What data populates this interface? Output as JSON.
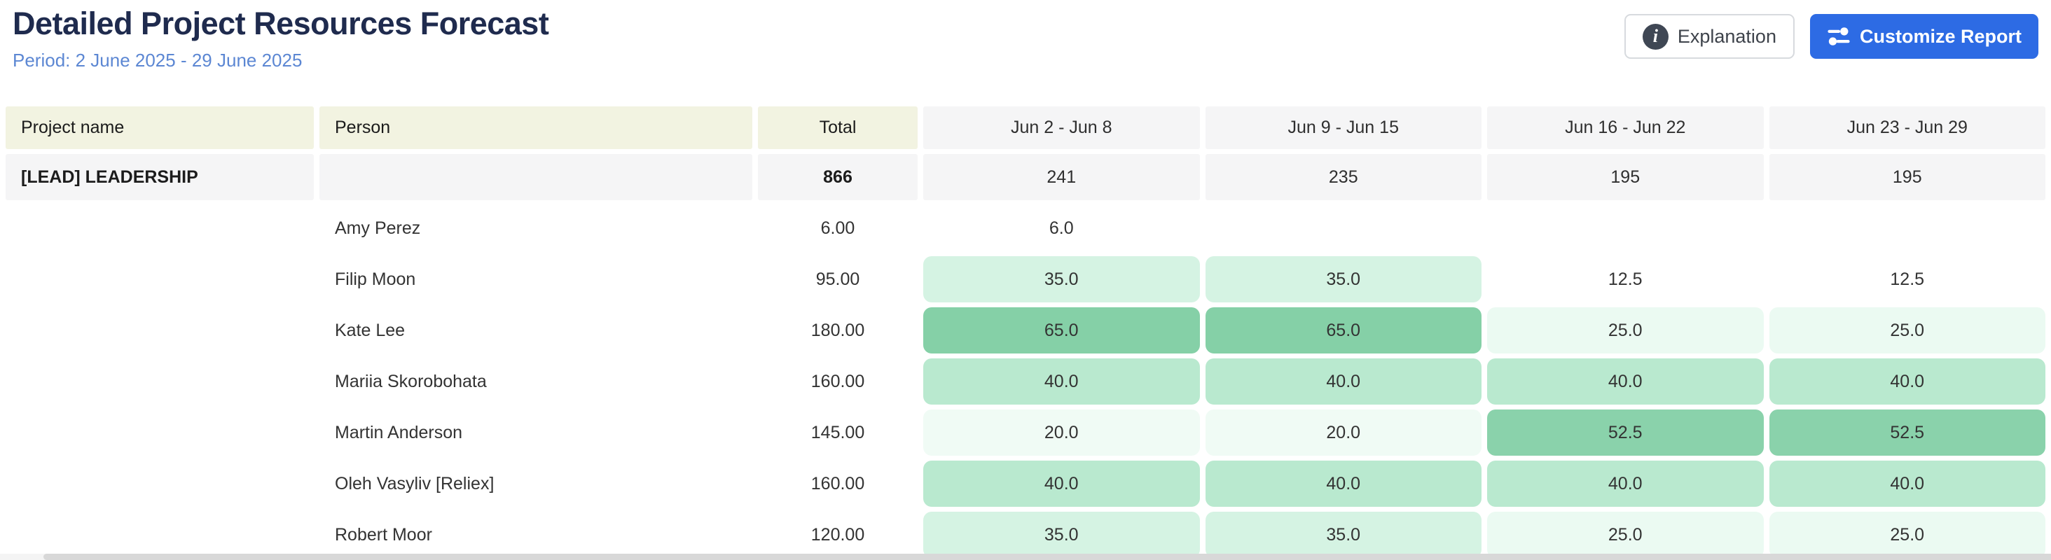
{
  "page": {
    "title": "Detailed Project Resources Forecast",
    "period": "Period: 2 June 2025 - 29 June 2025"
  },
  "toolbar": {
    "explanation_label": "Explanation",
    "customize_label": "Customize Report"
  },
  "colors": {
    "accent_blue": "#2d6be4",
    "title_navy": "#1f2b4e",
    "period_blue": "#5c87d3",
    "header_olive_bg": "#f2f3e1",
    "header_gray_bg": "#f5f5f6",
    "heat_scale": {
      "65.0": "#85d0a7",
      "52.5": "#8ad2ab",
      "40.0": "#b9e9cf",
      "35.0": "#d5f3e3",
      "25.0": "#ebfaf2",
      "20.0": "#f0fbf5"
    }
  },
  "table": {
    "columns": [
      "Project name",
      "Person",
      "Total",
      "Jun 2 - Jun 8",
      "Jun 9 - Jun 15",
      "Jun 16 - Jun 22",
      "Jun 23 - Jun 29"
    ],
    "summary": {
      "project": "[LEAD] LEADERSHIP",
      "person": "",
      "total": "866",
      "weeks": [
        "241",
        "235",
        "195",
        "195"
      ]
    },
    "rows": [
      {
        "person": "Amy Perez",
        "total": "6.00",
        "weeks": [
          {
            "v": "6.0",
            "bg": ""
          },
          {
            "v": "",
            "bg": ""
          },
          {
            "v": "",
            "bg": ""
          },
          {
            "v": "",
            "bg": ""
          }
        ]
      },
      {
        "person": "Filip Moon",
        "total": "95.00",
        "weeks": [
          {
            "v": "35.0",
            "bg": "#d5f3e3"
          },
          {
            "v": "35.0",
            "bg": "#d5f3e3"
          },
          {
            "v": "12.5",
            "bg": ""
          },
          {
            "v": "12.5",
            "bg": ""
          }
        ]
      },
      {
        "person": "Kate Lee",
        "total": "180.00",
        "weeks": [
          {
            "v": "65.0",
            "bg": "#85d0a7"
          },
          {
            "v": "65.0",
            "bg": "#85d0a7"
          },
          {
            "v": "25.0",
            "bg": "#ebfaf2"
          },
          {
            "v": "25.0",
            "bg": "#ebfaf2"
          }
        ]
      },
      {
        "person": "Mariia Skorobohata",
        "total": "160.00",
        "weeks": [
          {
            "v": "40.0",
            "bg": "#b9e9cf"
          },
          {
            "v": "40.0",
            "bg": "#b9e9cf"
          },
          {
            "v": "40.0",
            "bg": "#b9e9cf"
          },
          {
            "v": "40.0",
            "bg": "#b9e9cf"
          }
        ]
      },
      {
        "person": "Martin Anderson",
        "total": "145.00",
        "weeks": [
          {
            "v": "20.0",
            "bg": "#f0fbf5"
          },
          {
            "v": "20.0",
            "bg": "#f0fbf5"
          },
          {
            "v": "52.5",
            "bg": "#8ad2ab"
          },
          {
            "v": "52.5",
            "bg": "#8ad2ab"
          }
        ]
      },
      {
        "person": "Oleh Vasyliv [Reliex]",
        "total": "160.00",
        "weeks": [
          {
            "v": "40.0",
            "bg": "#b9e9cf"
          },
          {
            "v": "40.0",
            "bg": "#b9e9cf"
          },
          {
            "v": "40.0",
            "bg": "#b9e9cf"
          },
          {
            "v": "40.0",
            "bg": "#b9e9cf"
          }
        ]
      },
      {
        "person": "Robert Moor",
        "total": "120.00",
        "weeks": [
          {
            "v": "35.0",
            "bg": "#d5f3e3"
          },
          {
            "v": "35.0",
            "bg": "#d5f3e3"
          },
          {
            "v": "25.0",
            "bg": "#ebfaf2"
          },
          {
            "v": "25.0",
            "bg": "#ebfaf2"
          }
        ]
      }
    ]
  }
}
